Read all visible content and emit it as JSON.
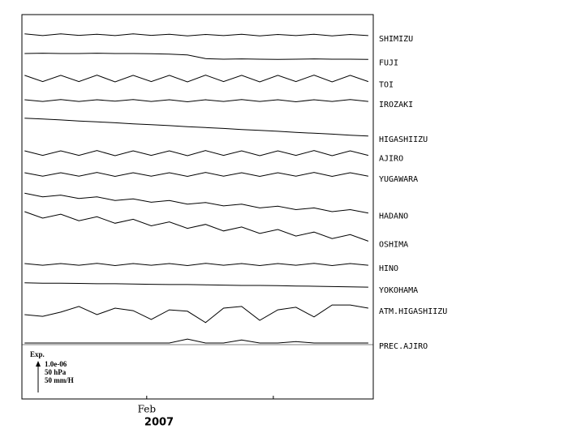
{
  "chart_data": {
    "type": "line",
    "x": [
      -27,
      -23,
      -19,
      -15,
      -11,
      -7,
      -3,
      1,
      5,
      9,
      13,
      17,
      21,
      25,
      29,
      33,
      37,
      41,
      45,
      49
    ],
    "xlim": [
      -27.6,
      50.1
    ],
    "xticks": [
      {
        "value": 0,
        "label": "Feb"
      },
      {
        "value": 28,
        "label": null
      }
    ],
    "xlabel": "2007",
    "ylim": [
      0,
      13.54
    ],
    "legend_title": "Exp.",
    "legend_items": [
      "1.0e-06",
      "50 hPa",
      "50 mm/H"
    ],
    "series": [
      {
        "name": "SHIMIZU",
        "color": "#000000",
        "values": [
          12.86,
          12.8,
          12.86,
          12.81,
          12.85,
          12.8,
          12.86,
          12.81,
          12.85,
          12.79,
          12.84,
          12.8,
          12.85,
          12.79,
          12.84,
          12.8,
          12.85,
          12.79,
          12.84,
          12.8
        ]
      },
      {
        "name": "FUJI",
        "color": "#000000",
        "values": [
          12.17,
          12.18,
          12.17,
          12.17,
          12.18,
          12.17,
          12.17,
          12.16,
          12.15,
          12.12,
          11.99,
          11.97,
          11.98,
          11.97,
          11.96,
          11.97,
          11.98,
          11.97,
          11.97,
          11.96
        ]
      },
      {
        "name": "TOI",
        "color": "#000000",
        "values": [
          11.4,
          11.18,
          11.4,
          11.18,
          11.41,
          11.17,
          11.4,
          11.18,
          11.4,
          11.17,
          11.41,
          11.18,
          11.4,
          11.17,
          11.4,
          11.18,
          11.41,
          11.17,
          11.4,
          11.18
        ]
      },
      {
        "name": "IROZAKI",
        "color": "#000000",
        "values": [
          10.54,
          10.48,
          10.55,
          10.48,
          10.54,
          10.49,
          10.55,
          10.48,
          10.54,
          10.47,
          10.54,
          10.48,
          10.55,
          10.48,
          10.54,
          10.47,
          10.54,
          10.48,
          10.55,
          10.48
        ]
      },
      {
        "name": "HIGASHIIZU",
        "color": "#000000",
        "values": [
          9.89,
          9.86,
          9.83,
          9.79,
          9.76,
          9.73,
          9.69,
          9.66,
          9.63,
          9.59,
          9.56,
          9.53,
          9.49,
          9.46,
          9.43,
          9.39,
          9.36,
          9.33,
          9.29,
          9.26
        ]
      },
      {
        "name": "AJIRO",
        "color": "#000000",
        "values": [
          8.74,
          8.58,
          8.74,
          8.58,
          8.75,
          8.57,
          8.74,
          8.58,
          8.74,
          8.57,
          8.75,
          8.58,
          8.74,
          8.57,
          8.74,
          8.58,
          8.75,
          8.57,
          8.74,
          8.58
        ]
      },
      {
        "name": "YUGAWARA",
        "color": "#000000",
        "values": [
          7.97,
          7.85,
          7.97,
          7.85,
          7.98,
          7.84,
          7.97,
          7.85,
          7.97,
          7.84,
          7.98,
          7.85,
          7.97,
          7.84,
          7.97,
          7.85,
          7.98,
          7.84,
          7.97,
          7.85
        ]
      },
      {
        "name": "HADANO",
        "color": "#000000",
        "values": [
          7.25,
          7.12,
          7.18,
          7.06,
          7.12,
          6.99,
          7.05,
          6.93,
          6.99,
          6.86,
          6.92,
          6.8,
          6.86,
          6.73,
          6.79,
          6.67,
          6.73,
          6.6,
          6.67,
          6.55
        ]
      },
      {
        "name": "OSHIMA",
        "color": "#000000",
        "values": [
          6.6,
          6.37,
          6.51,
          6.28,
          6.42,
          6.19,
          6.33,
          6.1,
          6.24,
          6.01,
          6.15,
          5.92,
          6.06,
          5.83,
          5.97,
          5.74,
          5.88,
          5.65,
          5.79,
          5.56
        ]
      },
      {
        "name": "HINO",
        "color": "#000000",
        "values": [
          4.77,
          4.71,
          4.77,
          4.71,
          4.78,
          4.7,
          4.77,
          4.71,
          4.77,
          4.7,
          4.78,
          4.71,
          4.77,
          4.7,
          4.77,
          4.71,
          4.78,
          4.7,
          4.77,
          4.71
        ]
      },
      {
        "name": "YOKOHAMA",
        "color": "#000000",
        "values": [
          4.09,
          4.08,
          4.08,
          4.07,
          4.06,
          4.06,
          4.05,
          4.04,
          4.03,
          4.03,
          4.02,
          4.01,
          4.0,
          4.0,
          3.99,
          3.98,
          3.97,
          3.96,
          3.95,
          3.94
        ]
      },
      {
        "name": "ATM.HIGASHIIZU",
        "color": "#000000",
        "values": [
          2.97,
          2.91,
          3.06,
          3.26,
          2.97,
          3.2,
          3.11,
          2.8,
          3.14,
          3.09,
          2.69,
          3.2,
          3.26,
          2.77,
          3.14,
          3.23,
          2.89,
          3.31,
          3.31,
          3.2
        ]
      },
      {
        "name": "PREC.AJIRO",
        "color": "#000000",
        "values": [
          1.97,
          1.97,
          1.97,
          1.97,
          1.97,
          1.97,
          1.97,
          1.97,
          1.97,
          2.11,
          1.97,
          1.97,
          2.08,
          1.97,
          1.97,
          2.02,
          1.97,
          1.97,
          1.97,
          1.97
        ]
      }
    ]
  }
}
